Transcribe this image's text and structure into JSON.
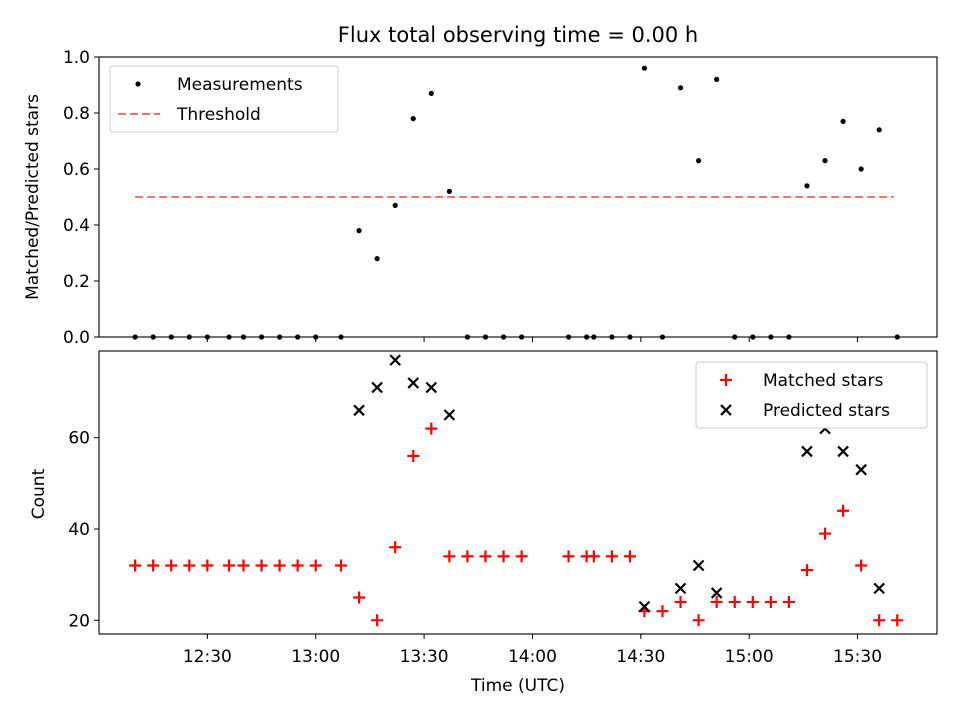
{
  "title": "Flux total observing time = 0.00 h",
  "colors": {
    "measurement": "#000000",
    "threshold": "#ff6f6f",
    "matched": "#ff0000",
    "predicted": "#000000"
  },
  "chart_data": [
    {
      "type": "scatter",
      "panel": "top",
      "title": "Flux total observing time = 0.00 h",
      "xlabel": "",
      "ylabel": "Matched/Predicted stars",
      "ylim": [
        0,
        1
      ],
      "yticks": [
        "0.0",
        "0.2",
        "0.4",
        "0.6",
        "0.8",
        "1.0"
      ],
      "legend": [
        "Measurements",
        "Threshold"
      ],
      "legend_position": "top-left",
      "threshold": {
        "name": "Threshold",
        "value": 0.5,
        "x_start": "12:10",
        "x_end": "15:40"
      },
      "series": [
        {
          "name": "Measurements",
          "points": [
            [
              "12:10",
              0
            ],
            [
              "12:15",
              0
            ],
            [
              "12:20",
              0
            ],
            [
              "12:25",
              0
            ],
            [
              "12:30",
              0
            ],
            [
              "12:36",
              0
            ],
            [
              "12:40",
              0
            ],
            [
              "12:45",
              0
            ],
            [
              "12:50",
              0
            ],
            [
              "12:55",
              0
            ],
            [
              "13:00",
              0
            ],
            [
              "13:07",
              0
            ],
            [
              "13:12",
              0.38
            ],
            [
              "13:17",
              0.28
            ],
            [
              "13:22",
              0.47
            ],
            [
              "13:27",
              0.78
            ],
            [
              "13:32",
              0.87
            ],
            [
              "13:37",
              0.52
            ],
            [
              "13:42",
              0
            ],
            [
              "13:47",
              0
            ],
            [
              "13:52",
              0
            ],
            [
              "13:57",
              0
            ],
            [
              "14:10",
              0
            ],
            [
              "14:15",
              0
            ],
            [
              "14:17",
              0
            ],
            [
              "14:22",
              0
            ],
            [
              "14:27",
              0
            ],
            [
              "14:31",
              0.96
            ],
            [
              "14:36",
              0
            ],
            [
              "14:41",
              0.89
            ],
            [
              "14:46",
              0.63
            ],
            [
              "14:51",
              0.92
            ],
            [
              "14:56",
              0
            ],
            [
              "15:01",
              0
            ],
            [
              "15:06",
              0
            ],
            [
              "15:11",
              0
            ],
            [
              "15:16",
              0.54
            ],
            [
              "15:21",
              0.63
            ],
            [
              "15:26",
              0.77
            ],
            [
              "15:31",
              0.6
            ],
            [
              "15:36",
              0.74
            ],
            [
              "15:41",
              0
            ]
          ]
        }
      ]
    },
    {
      "type": "scatter",
      "panel": "bottom",
      "xlabel": "Time (UTC)",
      "ylabel": "Count",
      "ylim": [
        17,
        79
      ],
      "yticks": [
        "20",
        "40",
        "60"
      ],
      "xticks": [
        "12:30",
        "13:00",
        "13:30",
        "14:00",
        "14:30",
        "15:00",
        "15:30"
      ],
      "xlim": [
        "12:00",
        "15:52"
      ],
      "legend": [
        "Matched stars",
        "Predicted stars"
      ],
      "legend_position": "top-right",
      "series": [
        {
          "name": "Matched stars",
          "marker": "+",
          "points": [
            [
              "12:10",
              32
            ],
            [
              "12:15",
              32
            ],
            [
              "12:20",
              32
            ],
            [
              "12:25",
              32
            ],
            [
              "12:30",
              32
            ],
            [
              "12:36",
              32
            ],
            [
              "12:40",
              32
            ],
            [
              "12:45",
              32
            ],
            [
              "12:50",
              32
            ],
            [
              "12:55",
              32
            ],
            [
              "13:00",
              32
            ],
            [
              "13:07",
              32
            ],
            [
              "13:12",
              25
            ],
            [
              "13:17",
              20
            ],
            [
              "13:22",
              36
            ],
            [
              "13:27",
              56
            ],
            [
              "13:32",
              62
            ],
            [
              "13:37",
              34
            ],
            [
              "13:42",
              34
            ],
            [
              "13:47",
              34
            ],
            [
              "13:52",
              34
            ],
            [
              "13:57",
              34
            ],
            [
              "14:10",
              34
            ],
            [
              "14:15",
              34
            ],
            [
              "14:17",
              34
            ],
            [
              "14:22",
              34
            ],
            [
              "14:27",
              34
            ],
            [
              "14:31",
              22
            ],
            [
              "14:36",
              22
            ],
            [
              "14:41",
              24
            ],
            [
              "14:46",
              20
            ],
            [
              "14:51",
              24
            ],
            [
              "14:56",
              24
            ],
            [
              "15:01",
              24
            ],
            [
              "15:06",
              24
            ],
            [
              "15:11",
              24
            ],
            [
              "15:16",
              31
            ],
            [
              "15:21",
              39
            ],
            [
              "15:26",
              44
            ],
            [
              "15:31",
              32
            ],
            [
              "15:36",
              20
            ],
            [
              "15:41",
              20
            ]
          ]
        },
        {
          "name": "Predicted stars",
          "marker": "x",
          "points": [
            [
              "13:12",
              66
            ],
            [
              "13:17",
              71
            ],
            [
              "13:22",
              77
            ],
            [
              "13:27",
              72
            ],
            [
              "13:32",
              71
            ],
            [
              "13:37",
              65
            ],
            [
              "14:31",
              23
            ],
            [
              "14:41",
              27
            ],
            [
              "14:46",
              32
            ],
            [
              "14:51",
              26
            ],
            [
              "15:16",
              57
            ],
            [
              "15:21",
              62
            ],
            [
              "15:26",
              57
            ],
            [
              "15:31",
              53
            ],
            [
              "15:36",
              27
            ]
          ]
        }
      ]
    }
  ]
}
